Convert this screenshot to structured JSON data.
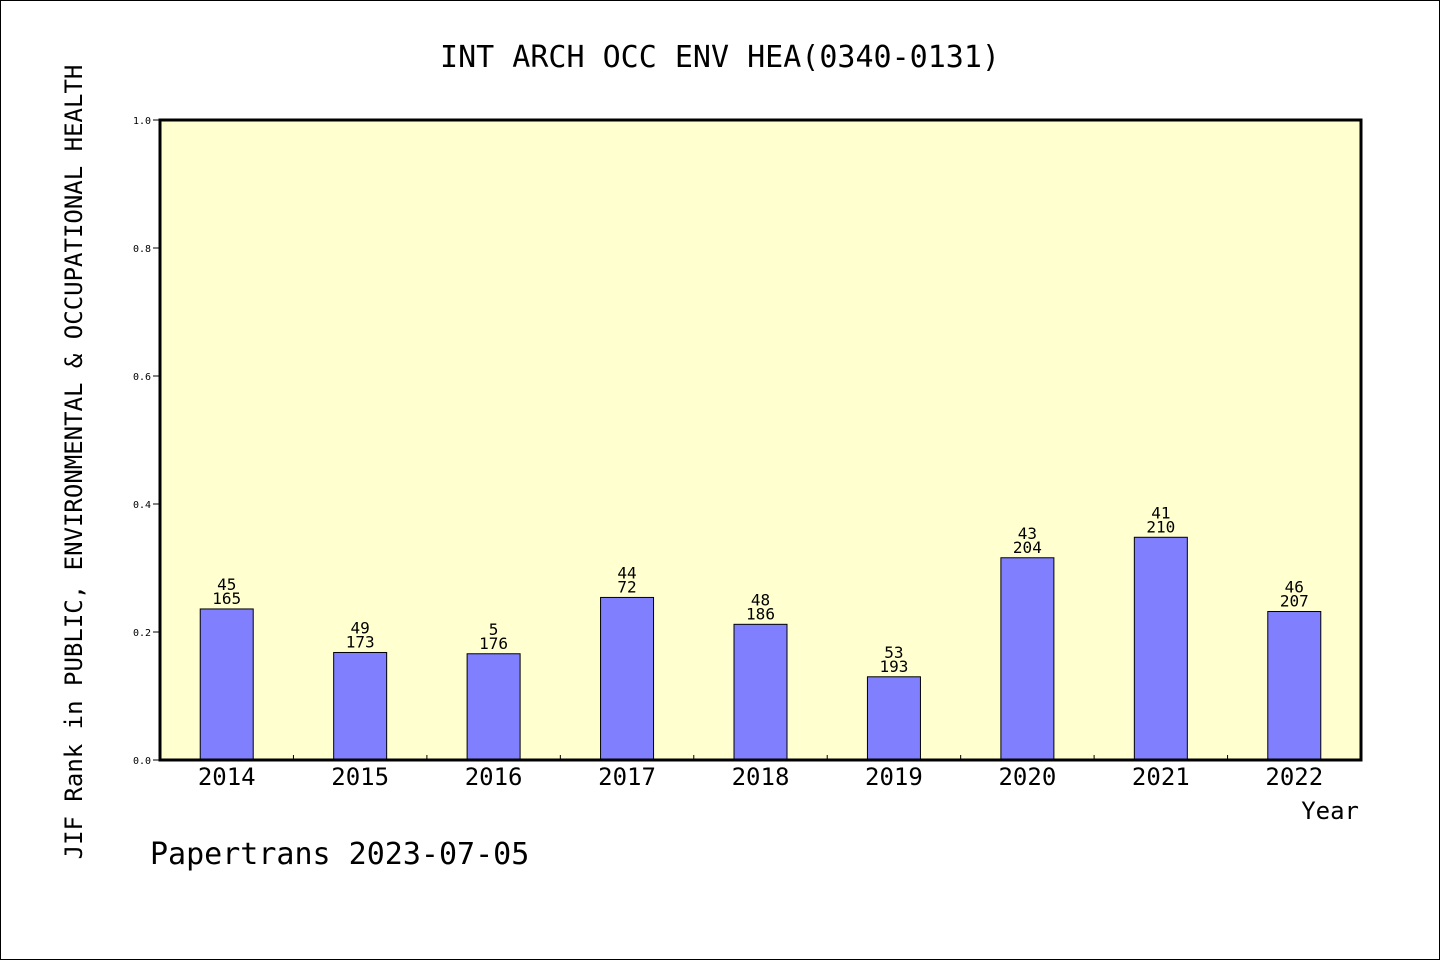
{
  "chart_data": {
    "type": "bar",
    "title": "INT ARCH OCC ENV HEA(0340-0131)",
    "xlabel": "Year",
    "ylabel": "JIF Rank in PUBLIC, ENVIRONMENTAL & OCCUPATIONAL HEALTH",
    "categories": [
      "2014",
      "2015",
      "2016",
      "2017",
      "2018",
      "2019",
      "2020",
      "2021",
      "2022"
    ],
    "values": [
      0.236,
      0.168,
      0.166,
      0.254,
      0.212,
      0.13,
      0.316,
      0.348,
      0.232
    ],
    "ranks": [
      "45",
      "49",
      "5",
      "44",
      "48",
      "53",
      "43",
      "41",
      "46"
    ],
    "totals": [
      "165",
      "173",
      "176",
      "72",
      "186",
      "193",
      "204",
      "210",
      "207"
    ],
    "ylim": [
      0,
      1.0
    ],
    "yticks": [
      "0.0",
      "0.2",
      "0.4",
      "0.6",
      "0.8",
      "1.0"
    ],
    "grid": false,
    "bar_color": "#8080ff",
    "plot_background": "#ffffd0"
  },
  "footer": {
    "watermark": "Papertrans 2023-07-05"
  }
}
